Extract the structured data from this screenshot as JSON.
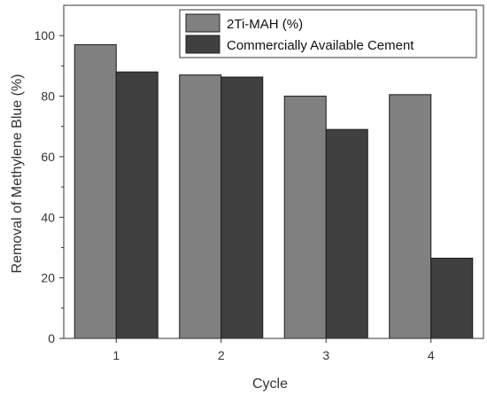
{
  "chart_data": {
    "type": "bar",
    "categories": [
      "1",
      "2",
      "3",
      "4"
    ],
    "series": [
      {
        "name": "2Ti-MAH (%)",
        "values": [
          97,
          87,
          80,
          80.5
        ],
        "color": "#808080"
      },
      {
        "name": "Commercially Available Cement",
        "values": [
          88,
          86.3,
          69,
          26.5
        ],
        "color": "#404040"
      }
    ],
    "xlabel": "Cycle",
    "ylabel": "Removal of Methylene Blue (%)",
    "ylim": [
      0,
      110
    ],
    "yticks": [
      "0",
      "20",
      "40",
      "60",
      "80",
      "100"
    ],
    "grid": false,
    "legend_position": "top-right"
  }
}
